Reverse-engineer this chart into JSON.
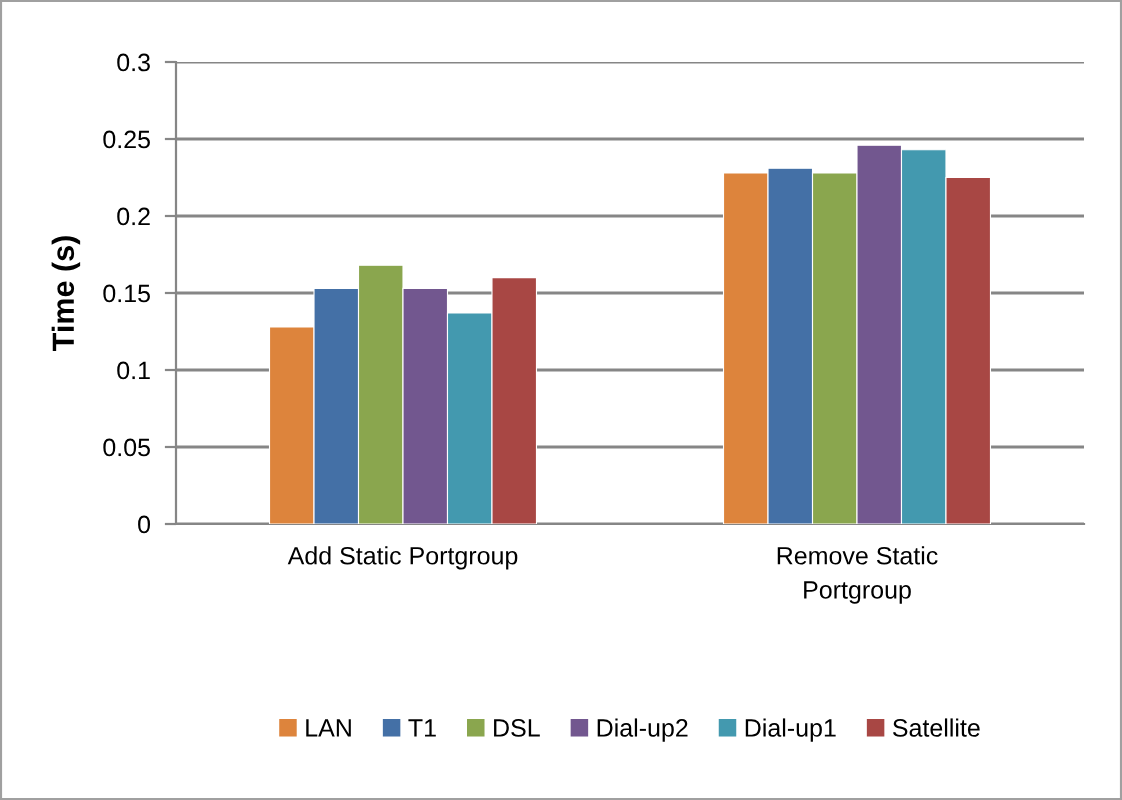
{
  "chart_data": {
    "type": "bar",
    "ylabel": "Time (s)",
    "categories": [
      "Add Static Portgroup",
      "Remove Static Portgroup"
    ],
    "series": [
      {
        "name": "LAN",
        "color": "#dd843c",
        "values": [
          0.128,
          0.228
        ]
      },
      {
        "name": "T1",
        "color": "#4470a6",
        "values": [
          0.153,
          0.231
        ]
      },
      {
        "name": "DSL",
        "color": "#8aa64e",
        "values": [
          0.168,
          0.228
        ]
      },
      {
        "name": "Dial-up2",
        "color": "#72578f",
        "values": [
          0.153,
          0.246
        ]
      },
      {
        "name": "Dial-up1",
        "color": "#4399af",
        "values": [
          0.137,
          0.243
        ]
      },
      {
        "name": "Satellite",
        "color": "#a84744",
        "values": [
          0.16,
          0.225
        ]
      }
    ],
    "ylim": [
      0,
      0.3
    ],
    "yticks": [
      0,
      0.05,
      0.1,
      0.15,
      0.2,
      0.25,
      0.3
    ],
    "grid": "y",
    "legend": "bottom"
  }
}
